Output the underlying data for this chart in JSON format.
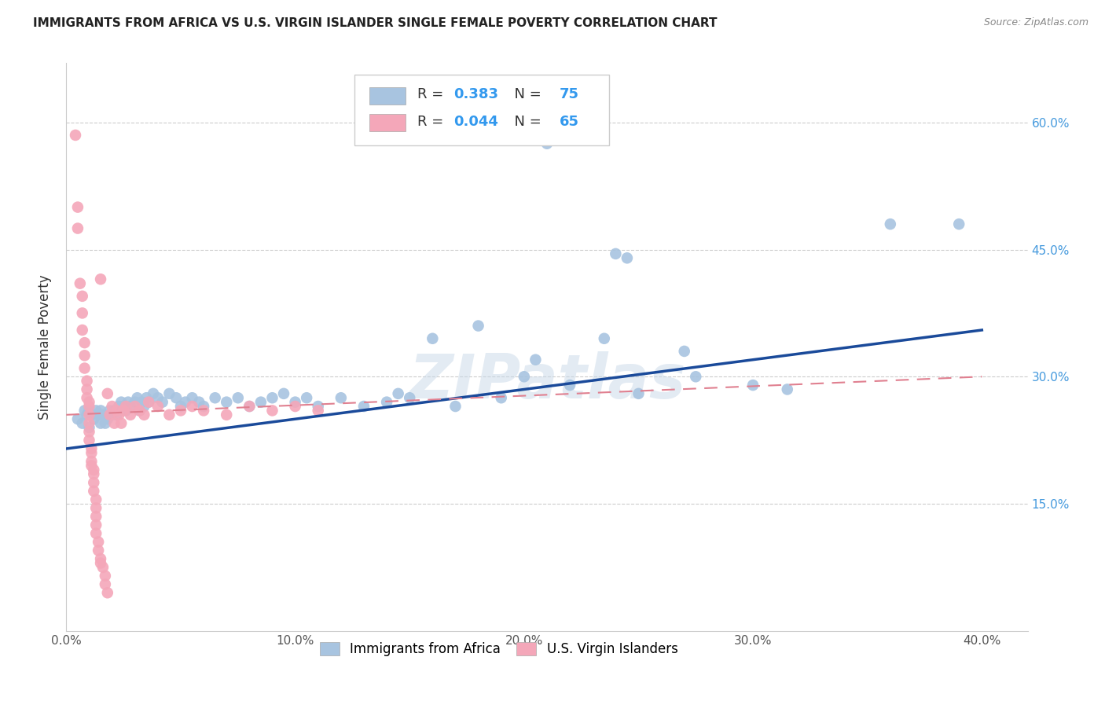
{
  "title": "IMMIGRANTS FROM AFRICA VS U.S. VIRGIN ISLANDER SINGLE FEMALE POVERTY CORRELATION CHART",
  "source": "Source: ZipAtlas.com",
  "ylabel": "Single Female Poverty",
  "x_ticks": [
    "0.0%",
    "10.0%",
    "20.0%",
    "30.0%",
    "40.0%"
  ],
  "x_tick_vals": [
    0.0,
    0.1,
    0.2,
    0.3,
    0.4
  ],
  "y_ticks_right": [
    "15.0%",
    "30.0%",
    "45.0%",
    "60.0%"
  ],
  "y_tick_vals": [
    0.15,
    0.3,
    0.45,
    0.6
  ],
  "xlim": [
    0.0,
    0.42
  ],
  "ylim": [
    0.0,
    0.67
  ],
  "legend_blue_label": "Immigrants from Africa",
  "legend_pink_label": "U.S. Virgin Islanders",
  "R_blue": 0.383,
  "N_blue": 75,
  "R_pink": 0.044,
  "N_pink": 65,
  "blue_color": "#a8c4e0",
  "pink_color": "#f4a7b9",
  "blue_line_color": "#1a4a9a",
  "pink_line_color": "#e08090",
  "watermark": "ZIPatlas",
  "blue_scatter": [
    [
      0.005,
      0.25
    ],
    [
      0.007,
      0.245
    ],
    [
      0.008,
      0.26
    ],
    [
      0.009,
      0.255
    ],
    [
      0.01,
      0.24
    ],
    [
      0.01,
      0.26
    ],
    [
      0.011,
      0.255
    ],
    [
      0.012,
      0.25
    ],
    [
      0.013,
      0.26
    ],
    [
      0.014,
      0.255
    ],
    [
      0.015,
      0.26
    ],
    [
      0.015,
      0.245
    ],
    [
      0.016,
      0.255
    ],
    [
      0.017,
      0.245
    ],
    [
      0.018,
      0.25
    ],
    [
      0.019,
      0.26
    ],
    [
      0.02,
      0.255
    ],
    [
      0.021,
      0.26
    ],
    [
      0.022,
      0.255
    ],
    [
      0.023,
      0.265
    ],
    [
      0.024,
      0.27
    ],
    [
      0.025,
      0.265
    ],
    [
      0.026,
      0.26
    ],
    [
      0.027,
      0.27
    ],
    [
      0.028,
      0.265
    ],
    [
      0.03,
      0.27
    ],
    [
      0.031,
      0.275
    ],
    [
      0.032,
      0.26
    ],
    [
      0.033,
      0.27
    ],
    [
      0.034,
      0.265
    ],
    [
      0.035,
      0.275
    ],
    [
      0.036,
      0.27
    ],
    [
      0.038,
      0.28
    ],
    [
      0.04,
      0.275
    ],
    [
      0.042,
      0.27
    ],
    [
      0.045,
      0.28
    ],
    [
      0.048,
      0.275
    ],
    [
      0.05,
      0.265
    ],
    [
      0.052,
      0.27
    ],
    [
      0.055,
      0.275
    ],
    [
      0.058,
      0.27
    ],
    [
      0.06,
      0.265
    ],
    [
      0.065,
      0.275
    ],
    [
      0.07,
      0.27
    ],
    [
      0.075,
      0.275
    ],
    [
      0.08,
      0.265
    ],
    [
      0.085,
      0.27
    ],
    [
      0.09,
      0.275
    ],
    [
      0.095,
      0.28
    ],
    [
      0.1,
      0.27
    ],
    [
      0.105,
      0.275
    ],
    [
      0.11,
      0.265
    ],
    [
      0.12,
      0.275
    ],
    [
      0.13,
      0.265
    ],
    [
      0.14,
      0.27
    ],
    [
      0.145,
      0.28
    ],
    [
      0.15,
      0.275
    ],
    [
      0.16,
      0.345
    ],
    [
      0.17,
      0.265
    ],
    [
      0.18,
      0.36
    ],
    [
      0.19,
      0.275
    ],
    [
      0.2,
      0.3
    ],
    [
      0.205,
      0.32
    ],
    [
      0.22,
      0.29
    ],
    [
      0.235,
      0.345
    ],
    [
      0.24,
      0.445
    ],
    [
      0.245,
      0.44
    ],
    [
      0.25,
      0.28
    ],
    [
      0.27,
      0.33
    ],
    [
      0.275,
      0.3
    ],
    [
      0.3,
      0.29
    ],
    [
      0.315,
      0.285
    ],
    [
      0.36,
      0.48
    ],
    [
      0.39,
      0.48
    ],
    [
      0.21,
      0.575
    ]
  ],
  "pink_scatter": [
    [
      0.004,
      0.585
    ],
    [
      0.005,
      0.5
    ],
    [
      0.005,
      0.475
    ],
    [
      0.006,
      0.41
    ],
    [
      0.007,
      0.395
    ],
    [
      0.007,
      0.375
    ],
    [
      0.007,
      0.355
    ],
    [
      0.008,
      0.34
    ],
    [
      0.008,
      0.325
    ],
    [
      0.008,
      0.31
    ],
    [
      0.009,
      0.295
    ],
    [
      0.009,
      0.285
    ],
    [
      0.009,
      0.275
    ],
    [
      0.01,
      0.27
    ],
    [
      0.01,
      0.265
    ],
    [
      0.01,
      0.255
    ],
    [
      0.01,
      0.245
    ],
    [
      0.01,
      0.235
    ],
    [
      0.01,
      0.225
    ],
    [
      0.011,
      0.215
    ],
    [
      0.011,
      0.21
    ],
    [
      0.011,
      0.2
    ],
    [
      0.011,
      0.195
    ],
    [
      0.012,
      0.19
    ],
    [
      0.012,
      0.185
    ],
    [
      0.012,
      0.175
    ],
    [
      0.012,
      0.165
    ],
    [
      0.013,
      0.155
    ],
    [
      0.013,
      0.145
    ],
    [
      0.013,
      0.135
    ],
    [
      0.013,
      0.125
    ],
    [
      0.013,
      0.115
    ],
    [
      0.014,
      0.105
    ],
    [
      0.014,
      0.095
    ],
    [
      0.015,
      0.085
    ],
    [
      0.015,
      0.08
    ],
    [
      0.016,
      0.075
    ],
    [
      0.017,
      0.065
    ],
    [
      0.017,
      0.055
    ],
    [
      0.018,
      0.045
    ],
    [
      0.018,
      0.28
    ],
    [
      0.019,
      0.255
    ],
    [
      0.02,
      0.265
    ],
    [
      0.021,
      0.245
    ],
    [
      0.022,
      0.26
    ],
    [
      0.023,
      0.255
    ],
    [
      0.024,
      0.245
    ],
    [
      0.025,
      0.26
    ],
    [
      0.026,
      0.265
    ],
    [
      0.028,
      0.255
    ],
    [
      0.03,
      0.265
    ],
    [
      0.032,
      0.26
    ],
    [
      0.034,
      0.255
    ],
    [
      0.036,
      0.27
    ],
    [
      0.04,
      0.265
    ],
    [
      0.045,
      0.255
    ],
    [
      0.05,
      0.26
    ],
    [
      0.055,
      0.265
    ],
    [
      0.06,
      0.26
    ],
    [
      0.07,
      0.255
    ],
    [
      0.08,
      0.265
    ],
    [
      0.09,
      0.26
    ],
    [
      0.1,
      0.265
    ],
    [
      0.11,
      0.26
    ],
    [
      0.015,
      0.415
    ]
  ]
}
